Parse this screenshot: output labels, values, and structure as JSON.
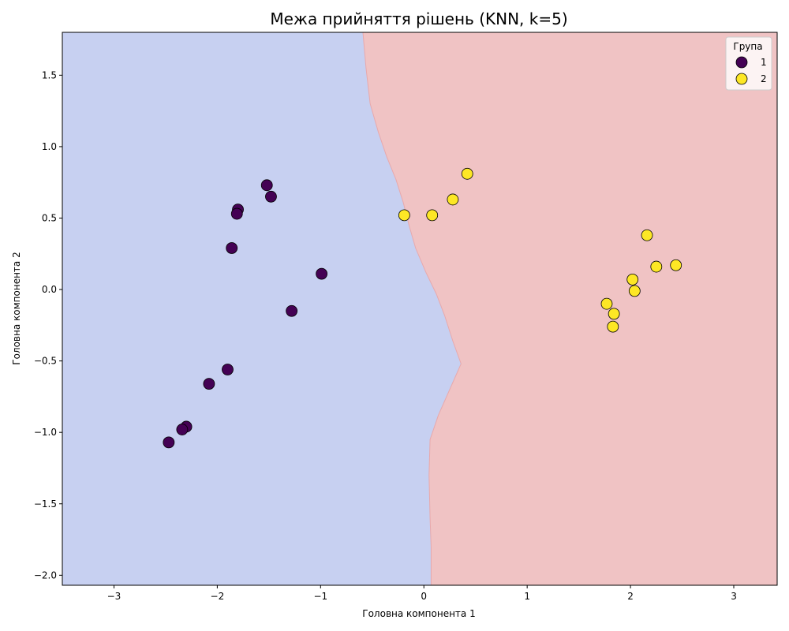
{
  "chart_data": {
    "type": "scatter",
    "title": "Межа прийняття рішень (KNN, k=5)",
    "xlabel": "Головна компонента 1",
    "ylabel": "Головна компонента 2",
    "xlim": [
      -3.5,
      3.42
    ],
    "ylim": [
      -2.07,
      1.8
    ],
    "xticks": [
      -3,
      -2,
      -1,
      0,
      1,
      2,
      3
    ],
    "xtick_labels": [
      "−3",
      "−2",
      "−1",
      "0",
      "1",
      "2",
      "3"
    ],
    "yticks": [
      -2.0,
      -1.5,
      -1.0,
      -0.5,
      0.0,
      0.5,
      1.0,
      1.5
    ],
    "ytick_labels": [
      "−2.0",
      "−1.5",
      "−1.0",
      "−0.5",
      "0.0",
      "0.5",
      "1.0",
      "1.5"
    ],
    "grid": false,
    "legend": {
      "title": "Група",
      "placement": "top-right"
    },
    "decision_regions": [
      {
        "class": "1",
        "color": "#c7d0f1"
      },
      {
        "class": "2",
        "color": "#f0c3c4"
      }
    ],
    "decision_boundary": {
      "points": [
        [
          -0.59,
          1.8
        ],
        [
          -0.56,
          1.55
        ],
        [
          -0.52,
          1.3
        ],
        [
          -0.44,
          1.1
        ],
        [
          -0.36,
          0.93
        ],
        [
          -0.27,
          0.77
        ],
        [
          -0.2,
          0.61
        ],
        [
          -0.14,
          0.44
        ],
        [
          -0.08,
          0.29
        ],
        [
          0.02,
          0.12
        ],
        [
          0.12,
          -0.03
        ],
        [
          0.2,
          -0.18
        ],
        [
          0.28,
          -0.36
        ],
        [
          0.36,
          -0.52
        ],
        [
          0.25,
          -0.7
        ],
        [
          0.14,
          -0.88
        ],
        [
          0.06,
          -1.05
        ],
        [
          0.05,
          -1.3
        ],
        [
          0.06,
          -1.6
        ],
        [
          0.07,
          -1.8
        ],
        [
          0.07,
          -2.07
        ]
      ]
    },
    "series": [
      {
        "name": "1",
        "color": "#440154",
        "points": [
          [
            -1.52,
            0.73
          ],
          [
            -1.48,
            0.65
          ],
          [
            -1.8,
            0.56
          ],
          [
            -1.81,
            0.53
          ],
          [
            -1.86,
            0.29
          ],
          [
            -0.99,
            0.11
          ],
          [
            -1.28,
            -0.15
          ],
          [
            -1.9,
            -0.56
          ],
          [
            -2.08,
            -0.66
          ],
          [
            -2.3,
            -0.96
          ],
          [
            -2.34,
            -0.98
          ],
          [
            -2.47,
            -1.07
          ]
        ]
      },
      {
        "name": "2",
        "color": "#fde725",
        "points": [
          [
            0.42,
            0.81
          ],
          [
            0.28,
            0.63
          ],
          [
            -0.19,
            0.52
          ],
          [
            0.08,
            0.52
          ],
          [
            2.16,
            0.38
          ],
          [
            2.44,
            0.17
          ],
          [
            2.25,
            0.16
          ],
          [
            2.02,
            0.07
          ],
          [
            2.04,
            -0.01
          ],
          [
            1.77,
            -0.1
          ],
          [
            1.84,
            -0.17
          ],
          [
            1.83,
            -0.26
          ]
        ]
      }
    ]
  }
}
